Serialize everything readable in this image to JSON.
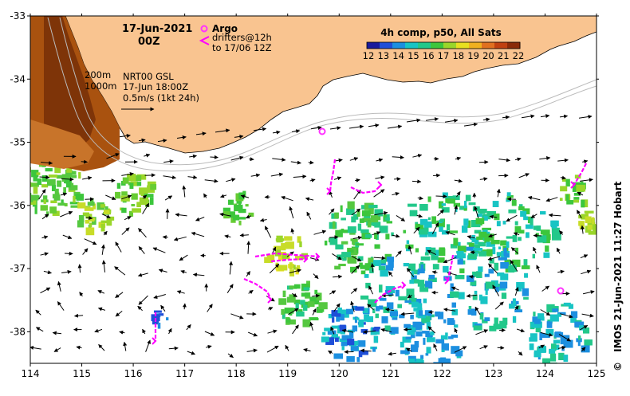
{
  "map": {
    "date_label": "17-Jun-2021",
    "time_label": "00Z",
    "lon_ticks": [
      "114",
      "115",
      "116",
      "117",
      "118",
      "119",
      "120",
      "121",
      "122",
      "123",
      "124",
      "125"
    ],
    "lat_ticks": [
      "-33",
      "-34",
      "-35",
      "-36",
      "-37",
      "-38"
    ],
    "lon_range": [
      114,
      125
    ],
    "lat_range": [
      -38.5,
      -33
    ]
  },
  "legend": {
    "argo_label": "Argo",
    "drifters_label": "drifters@12h",
    "drifters_to_label": "to 17/06 12Z",
    "argo_color": "#ff33ff",
    "drifter_color": "#ff00ff"
  },
  "contours": {
    "label_200": "200m",
    "label_1000": "1000m"
  },
  "velocity": {
    "line1": "NRT00 GSL",
    "line2": "17-Jun 18:00Z",
    "line3": "0.5m/s (1kt 24h)"
  },
  "colorbar": {
    "title": "4h comp, p50, All Sats",
    "ticks": [
      "12",
      "13",
      "14",
      "15",
      "16",
      "17",
      "18",
      "19",
      "20",
      "21",
      "22"
    ],
    "colors": [
      "#1a1a9c",
      "#1f4fd8",
      "#1c8fe0",
      "#18c4c4",
      "#22c88a",
      "#3cc63c",
      "#9ad62a",
      "#e8e020",
      "#f0b020",
      "#e07020",
      "#c04010",
      "#8a2a08"
    ]
  },
  "credit": "IMOS 21-Jun-2021 11:27 Hobart",
  "copyright_symbol": "©",
  "colors": {
    "land": "#f9c490",
    "sst_warm_dark": "#8a3c0a",
    "sst_warm": "#b65a14"
  }
}
